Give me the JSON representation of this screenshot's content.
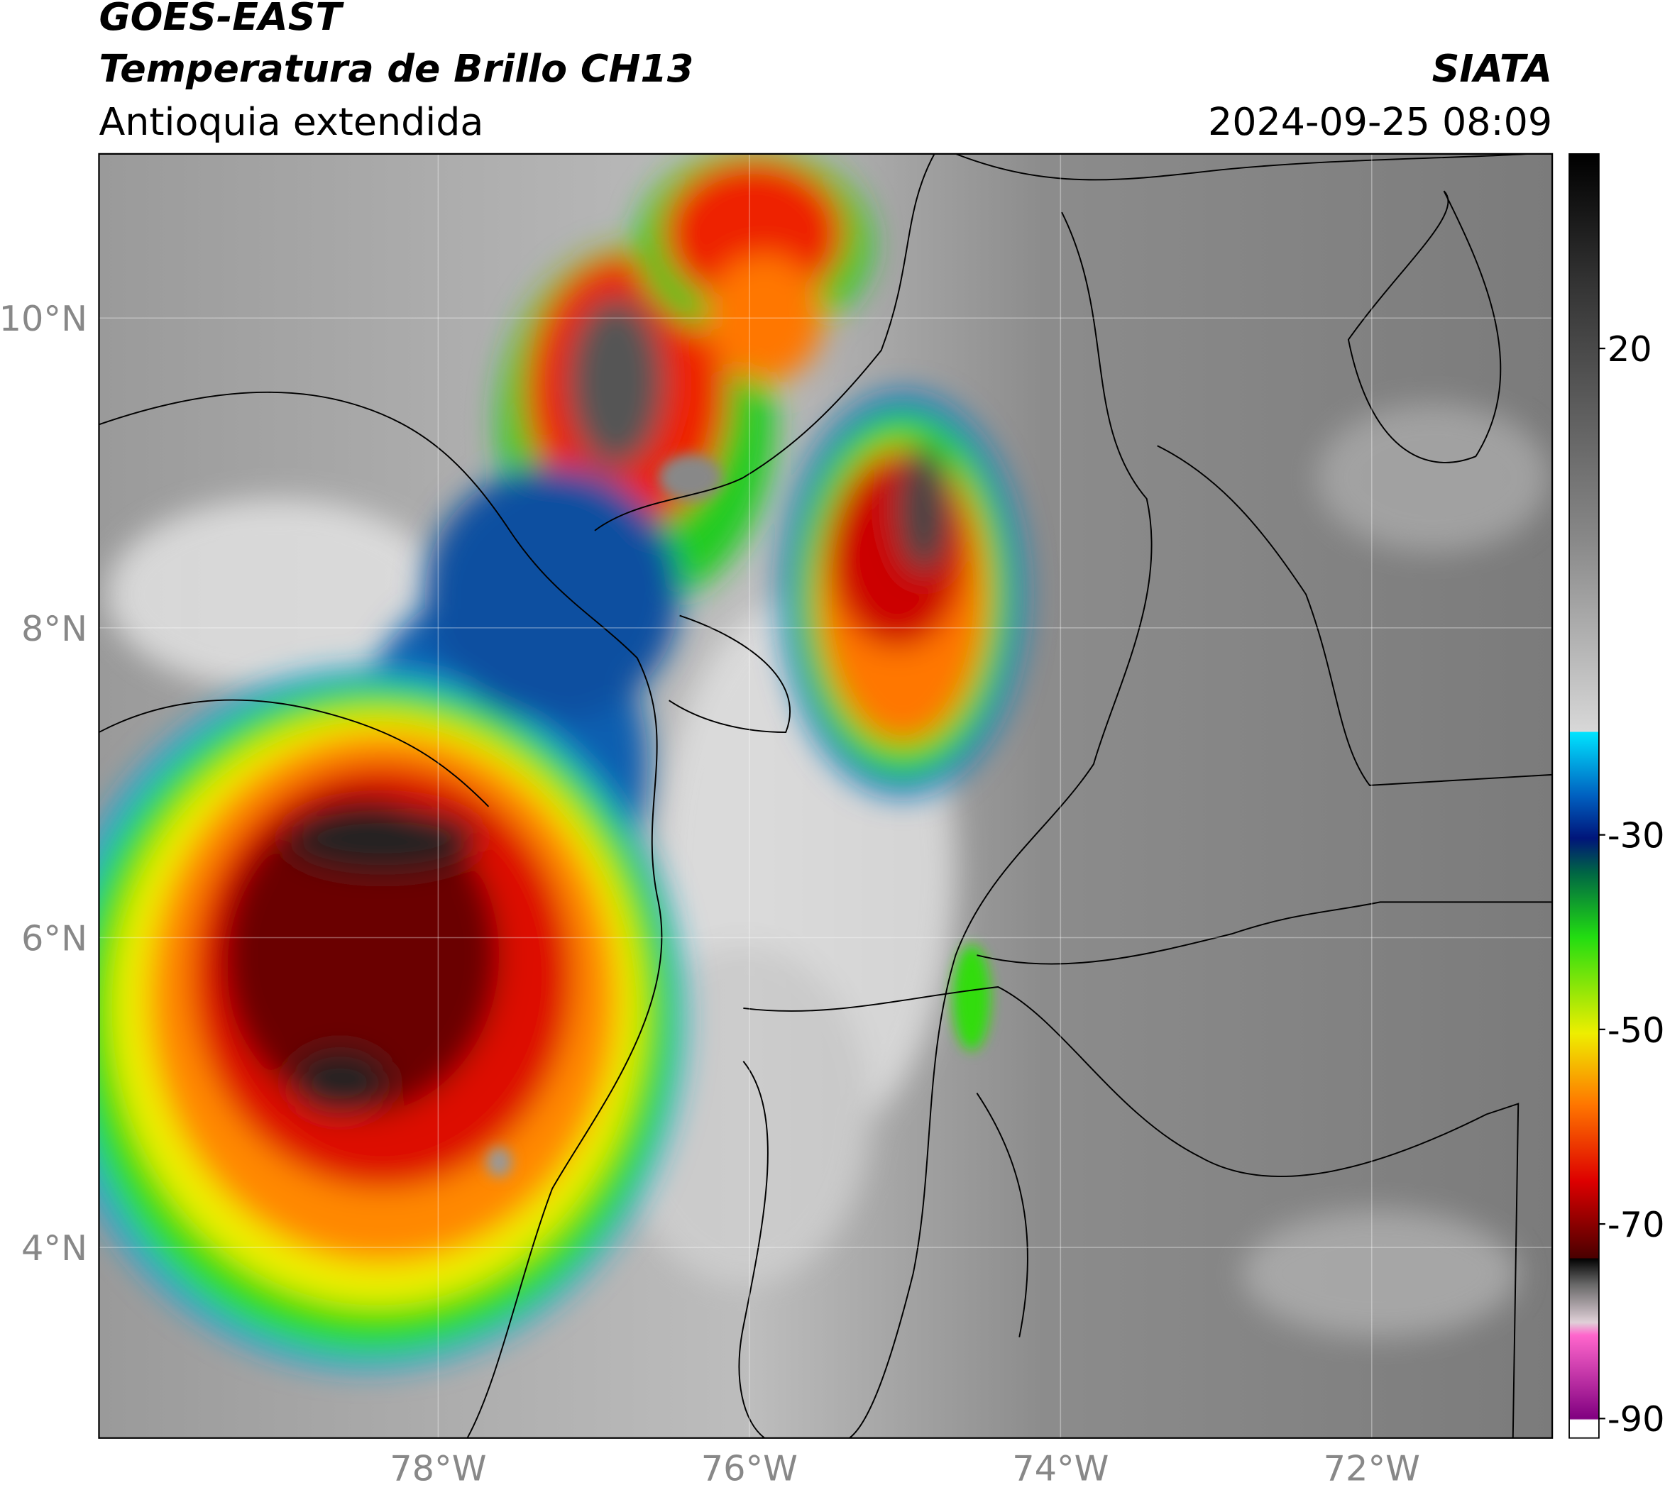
{
  "header": {
    "title": "GOES-EAST",
    "subtitle": "Temperatura de Brillo CH13",
    "region": "Antioquia extendida",
    "source": "SIATA",
    "datetime": "2024-09-25 08:09"
  },
  "map": {
    "lon_range": [
      -80.18,
      -70.84
    ],
    "lat_range": [
      2.77,
      11.06
    ],
    "lon_ticks": [
      {
        "value": -78,
        "label": "78°W"
      },
      {
        "value": -76,
        "label": "76°W"
      },
      {
        "value": -74,
        "label": "74°W"
      },
      {
        "value": -72,
        "label": "72°W"
      }
    ],
    "lat_ticks": [
      {
        "value": 10,
        "label": "10°N"
      },
      {
        "value": 8,
        "label": "8°N"
      },
      {
        "value": 6,
        "label": "6°N"
      },
      {
        "value": 4,
        "label": "4°N"
      }
    ]
  },
  "colorbar": {
    "range": [
      -92,
      40
    ],
    "ticks": [
      20,
      -30,
      -50,
      -70,
      -90
    ]
  }
}
